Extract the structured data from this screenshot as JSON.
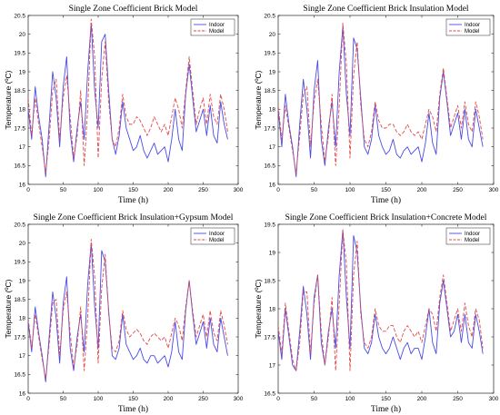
{
  "chart_data": [
    {
      "type": "line",
      "title": "Single Zone Coefficient Brick Model",
      "xlabel": "Time (h)",
      "ylabel": "Temperature (ºC)",
      "xlim": [
        0,
        300
      ],
      "ylim": [
        16,
        20.5
      ],
      "xticks": [
        0,
        50,
        100,
        150,
        200,
        250,
        300
      ],
      "yticks": [
        16,
        16.5,
        17,
        17.5,
        18,
        18.5,
        19,
        19.5,
        20,
        20.5
      ],
      "legend_position": "top-right",
      "x": [
        0,
        5,
        10,
        15,
        20,
        25,
        30,
        35,
        40,
        45,
        50,
        55,
        60,
        65,
        70,
        75,
        80,
        85,
        90,
        95,
        100,
        105,
        110,
        115,
        120,
        125,
        130,
        135,
        140,
        145,
        150,
        155,
        160,
        165,
        170,
        175,
        180,
        185,
        190,
        195,
        200,
        205,
        210,
        215,
        220,
        225,
        230,
        235,
        240,
        245,
        250,
        255,
        260,
        265,
        270,
        275,
        280,
        285
      ],
      "series": [
        {
          "name": "Indoor",
          "color": "#4a4ae6",
          "dash": "solid",
          "values": [
            18.0,
            17.2,
            18.6,
            17.8,
            17.2,
            16.2,
            17.6,
            19.0,
            18.3,
            17.0,
            18.6,
            19.4,
            17.4,
            16.6,
            17.5,
            18.2,
            17.2,
            19.0,
            20.3,
            18.5,
            17.5,
            19.8,
            20.0,
            18.5,
            17.2,
            16.8,
            17.3,
            18.2,
            17.5,
            17.2,
            16.9,
            17.0,
            17.3,
            16.9,
            16.7,
            16.9,
            17.1,
            16.8,
            16.9,
            17.0,
            16.6,
            17.2,
            18.0,
            17.2,
            16.9,
            18.4,
            19.2,
            18.3,
            17.4,
            17.7,
            18.0,
            17.3,
            18.1,
            17.3,
            17.1,
            18.2,
            17.6,
            17.2
          ]
        },
        {
          "name": "Model",
          "color": "#e24a4a",
          "dash": "dashed",
          "values": [
            18.3,
            17.3,
            18.3,
            17.6,
            17.0,
            16.3,
            17.2,
            18.5,
            18.8,
            17.2,
            18.3,
            18.9,
            17.8,
            16.7,
            17.3,
            18.5,
            16.5,
            18.0,
            20.4,
            19.4,
            16.7,
            18.8,
            19.8,
            18.2,
            17.2,
            17.0,
            17.5,
            18.4,
            17.8,
            17.6,
            17.6,
            17.8,
            17.7,
            17.5,
            17.3,
            17.5,
            17.8,
            17.6,
            17.4,
            17.6,
            17.3,
            17.8,
            18.3,
            18.0,
            17.5,
            18.5,
            19.4,
            18.5,
            17.6,
            18.0,
            18.3,
            17.6,
            18.4,
            17.8,
            17.6,
            18.4,
            18.0,
            17.4
          ]
        }
      ]
    },
    {
      "type": "line",
      "title": "Single Zone Coefficient Brick Insulation Model",
      "xlabel": "Time (h)",
      "ylabel": "Temperature (ºC)",
      "xlim": [
        0,
        300
      ],
      "ylim": [
        16,
        20.5
      ],
      "xticks": [
        0,
        50,
        100,
        150,
        200,
        250,
        300
      ],
      "yticks": [
        16,
        16.5,
        17,
        17.5,
        18,
        18.5,
        19,
        19.5,
        20,
        20.5
      ],
      "legend_position": "top-right",
      "x": [
        0,
        5,
        10,
        15,
        20,
        25,
        30,
        35,
        40,
        45,
        50,
        55,
        60,
        65,
        70,
        75,
        80,
        85,
        90,
        95,
        100,
        105,
        110,
        115,
        120,
        125,
        130,
        135,
        140,
        145,
        150,
        155,
        160,
        165,
        170,
        175,
        180,
        185,
        190,
        195,
        200,
        205,
        210,
        215,
        220,
        225,
        230,
        235,
        240,
        245,
        250,
        255,
        260,
        265,
        270,
        275,
        280,
        285
      ],
      "series": [
        {
          "name": "Indoor",
          "color": "#4a4ae6",
          "dash": "solid",
          "values": [
            18.0,
            17.0,
            18.4,
            17.6,
            17.0,
            16.2,
            17.6,
            18.8,
            18.0,
            16.7,
            18.5,
            19.3,
            17.2,
            16.5,
            17.5,
            18.2,
            17.0,
            19.0,
            20.2,
            18.4,
            17.3,
            19.9,
            19.6,
            18.3,
            17.0,
            16.8,
            17.2,
            18.1,
            17.3,
            17.0,
            16.8,
            16.9,
            17.2,
            16.8,
            16.7,
            16.9,
            17.0,
            16.8,
            16.9,
            17.0,
            16.6,
            17.1,
            17.9,
            17.1,
            16.8,
            18.3,
            19.0,
            18.2,
            17.3,
            17.6,
            17.9,
            17.2,
            18.0,
            17.2,
            17.0,
            18.0,
            17.5,
            17.0
          ]
        },
        {
          "name": "Model",
          "color": "#e24a4a",
          "dash": "dashed",
          "values": [
            18.1,
            17.2,
            18.1,
            17.5,
            16.9,
            16.3,
            17.3,
            18.4,
            18.6,
            17.0,
            18.2,
            18.8,
            17.6,
            16.6,
            17.3,
            18.4,
            16.5,
            18.1,
            20.3,
            19.2,
            16.7,
            18.9,
            19.8,
            18.1,
            17.2,
            17.0,
            17.4,
            18.2,
            17.7,
            17.5,
            17.5,
            17.6,
            17.6,
            17.4,
            17.3,
            17.4,
            17.6,
            17.4,
            17.3,
            17.4,
            17.2,
            17.6,
            18.0,
            17.8,
            17.4,
            18.4,
            19.1,
            18.3,
            17.5,
            17.8,
            18.1,
            17.5,
            18.2,
            17.6,
            17.4,
            18.2,
            17.8,
            17.2
          ]
        }
      ]
    },
    {
      "type": "line",
      "title": "Single Zone Coefficient Brick Insulation+Gypsum Model",
      "xlabel": "Time (h)",
      "ylabel": "Temperature (ºC)",
      "xlim": [
        0,
        300
      ],
      "ylim": [
        16,
        20.5
      ],
      "xticks": [
        0,
        50,
        100,
        150,
        200,
        250,
        300
      ],
      "yticks": [
        16,
        16.5,
        17,
        17.5,
        18,
        18.5,
        19,
        19.5,
        20,
        20.5
      ],
      "legend_position": "top-right",
      "x": [
        0,
        5,
        10,
        15,
        20,
        25,
        30,
        35,
        40,
        45,
        50,
        55,
        60,
        65,
        70,
        75,
        80,
        85,
        90,
        95,
        100,
        105,
        110,
        115,
        120,
        125,
        130,
        135,
        140,
        145,
        150,
        155,
        160,
        165,
        170,
        175,
        180,
        185,
        190,
        195,
        200,
        205,
        210,
        215,
        220,
        225,
        230,
        235,
        240,
        245,
        250,
        255,
        260,
        265,
        270,
        275,
        280,
        285
      ],
      "series": [
        {
          "name": "Indoor",
          "color": "#4a4ae6",
          "dash": "solid",
          "values": [
            17.9,
            17.1,
            18.3,
            17.6,
            17.0,
            16.3,
            17.5,
            18.7,
            18.0,
            16.8,
            18.4,
            19.1,
            17.2,
            16.6,
            17.5,
            18.1,
            17.1,
            18.9,
            20.0,
            18.3,
            17.2,
            19.8,
            19.5,
            18.2,
            17.0,
            16.9,
            17.2,
            18.1,
            17.3,
            17.1,
            16.9,
            17.0,
            17.2,
            16.9,
            16.8,
            17.0,
            17.0,
            16.8,
            16.9,
            17.0,
            16.7,
            17.1,
            17.9,
            17.1,
            16.9,
            18.2,
            19.0,
            18.1,
            17.3,
            17.6,
            17.9,
            17.2,
            18.0,
            17.3,
            17.1,
            18.0,
            17.5,
            17.0
          ]
        },
        {
          "name": "Model",
          "color": "#e24a4a",
          "dash": "dashed",
          "values": [
            18.0,
            17.2,
            18.1,
            17.5,
            16.9,
            16.4,
            17.3,
            18.4,
            18.5,
            17.0,
            18.2,
            18.7,
            17.6,
            16.7,
            17.3,
            18.3,
            16.6,
            18.0,
            20.1,
            19.1,
            16.8,
            18.8,
            19.7,
            18.1,
            17.2,
            17.1,
            17.4,
            18.2,
            17.7,
            17.5,
            17.6,
            17.7,
            17.6,
            17.4,
            17.3,
            17.5,
            17.6,
            17.5,
            17.4,
            17.5,
            17.2,
            17.6,
            18.0,
            17.8,
            17.4,
            18.3,
            19.0,
            18.2,
            17.5,
            17.8,
            18.1,
            17.5,
            18.2,
            17.6,
            17.4,
            18.2,
            17.8,
            17.3
          ]
        }
      ]
    },
    {
      "type": "line",
      "title": "Single Zone Coefficient Brick Insulation+Concrete Model",
      "xlabel": "Time (h)",
      "ylabel": "Temperature (ºC)",
      "xlim": [
        0,
        300
      ],
      "ylim": [
        16.5,
        19.5
      ],
      "xticks": [
        0,
        50,
        100,
        150,
        200,
        250,
        300
      ],
      "yticks": [
        16.5,
        17,
        17.5,
        18,
        18.5,
        19,
        19.5
      ],
      "legend_position": "top-right",
      "x": [
        0,
        5,
        10,
        15,
        20,
        25,
        30,
        35,
        40,
        45,
        50,
        55,
        60,
        65,
        70,
        75,
        80,
        85,
        90,
        95,
        100,
        105,
        110,
        115,
        120,
        125,
        130,
        135,
        140,
        145,
        150,
        155,
        160,
        165,
        170,
        175,
        180,
        185,
        190,
        195,
        200,
        205,
        210,
        215,
        220,
        225,
        230,
        235,
        240,
        245,
        250,
        255,
        260,
        265,
        270,
        275,
        280,
        285
      ],
      "series": [
        {
          "name": "Indoor",
          "color": "#4a4ae6",
          "dash": "solid",
          "values": [
            17.6,
            17.1,
            18.0,
            17.5,
            17.0,
            16.9,
            17.6,
            18.4,
            17.9,
            17.1,
            18.2,
            18.6,
            17.4,
            17.0,
            17.6,
            18.0,
            17.3,
            18.6,
            19.4,
            18.2,
            17.3,
            19.3,
            19.0,
            18.0,
            17.3,
            17.2,
            17.4,
            17.9,
            17.5,
            17.3,
            17.2,
            17.3,
            17.5,
            17.3,
            17.1,
            17.3,
            17.4,
            17.2,
            17.3,
            17.3,
            17.1,
            17.5,
            18.0,
            17.4,
            17.2,
            18.1,
            18.5,
            18.0,
            17.5,
            17.6,
            17.9,
            17.4,
            17.9,
            17.4,
            17.3,
            17.9,
            17.6,
            17.2
          ]
        },
        {
          "name": "Model",
          "color": "#e24a4a",
          "dash": "dashed",
          "values": [
            17.7,
            17.2,
            18.1,
            17.6,
            17.1,
            16.9,
            17.4,
            18.3,
            18.3,
            17.2,
            18.1,
            18.6,
            17.6,
            17.0,
            17.5,
            18.2,
            16.9,
            18.1,
            19.4,
            18.8,
            16.9,
            18.6,
            19.2,
            17.9,
            17.4,
            17.3,
            17.5,
            18.0,
            17.7,
            17.6,
            17.6,
            17.7,
            17.7,
            17.5,
            17.4,
            17.6,
            17.7,
            17.6,
            17.5,
            17.6,
            17.4,
            17.7,
            18.0,
            17.9,
            17.6,
            18.2,
            18.6,
            18.1,
            17.6,
            17.8,
            18.0,
            17.6,
            18.1,
            17.7,
            17.5,
            18.0,
            17.8,
            17.3
          ]
        }
      ]
    }
  ]
}
